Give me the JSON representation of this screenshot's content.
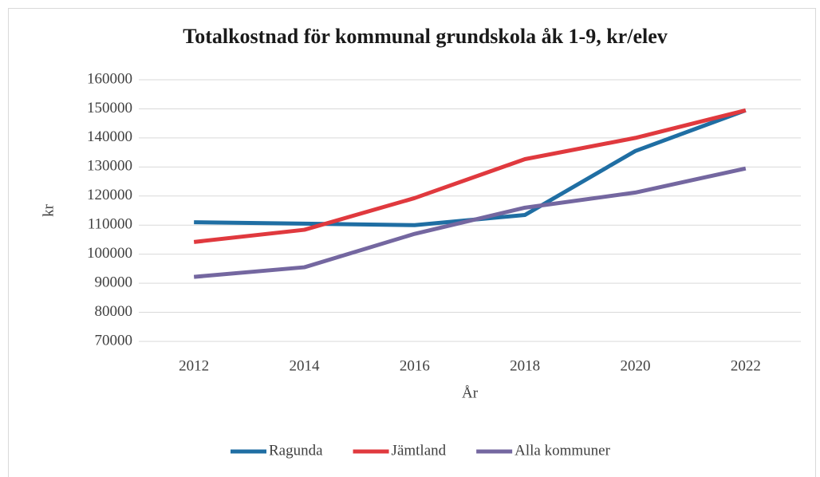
{
  "chart_data": {
    "type": "line",
    "title": "Totalkostnad för kommunal grundskola åk 1-9, kr/elev",
    "x_label": "År",
    "y_label": "kr",
    "categories": [
      "2012",
      "2014",
      "2016",
      "2018",
      "2020",
      "2022"
    ],
    "series": [
      {
        "name": "Ragunda",
        "color": "#1f6ea3",
        "values": [
          111000,
          110500,
          110000,
          113500,
          135500,
          149500
        ]
      },
      {
        "name": "Jämtland",
        "color": "#e0393e",
        "values": [
          104200,
          108400,
          119300,
          132700,
          140000,
          149500
        ]
      },
      {
        "name": "Alla kommuner",
        "color": "#7467a0",
        "values": [
          92200,
          95500,
          107000,
          116000,
          121200,
          129500
        ]
      }
    ],
    "ylim": [
      70000,
      160000
    ],
    "yticks": [
      70000,
      80000,
      90000,
      100000,
      110000,
      120000,
      130000,
      140000,
      150000,
      160000
    ],
    "grid": true,
    "legend": "bottom"
  }
}
